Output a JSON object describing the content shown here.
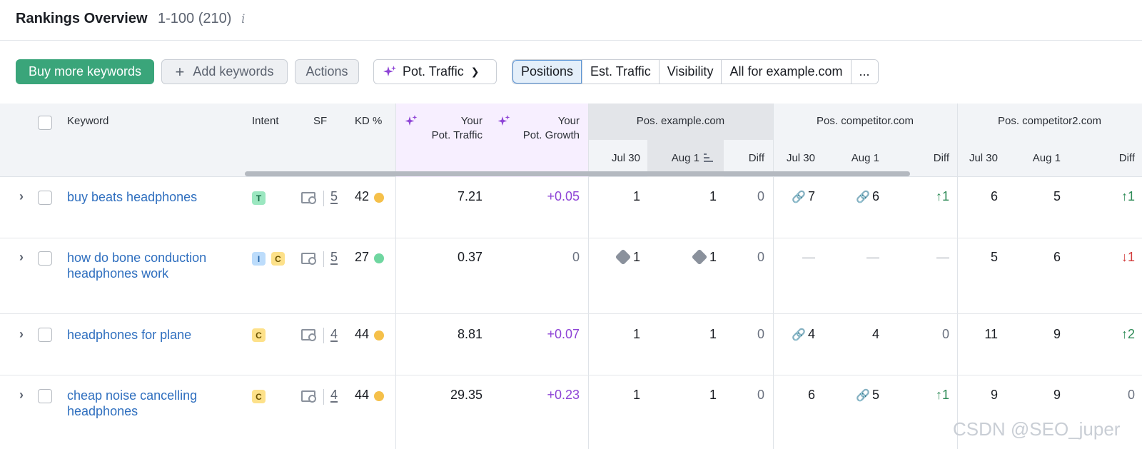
{
  "header": {
    "title": "Rankings Overview",
    "range": "1-100 (210)",
    "info_icon": "i"
  },
  "toolbar": {
    "buy_more": "Buy more keywords",
    "add_keywords": "Add keywords",
    "actions": "Actions",
    "pot_traffic": "Pot. Traffic",
    "tabs": [
      "Positions",
      "Est. Traffic",
      "Visibility",
      "All for example.com",
      "..."
    ],
    "active_tab": "Positions"
  },
  "columns": {
    "keyword": "Keyword",
    "intent": "Intent",
    "sf": "SF",
    "kd": "KD %",
    "your_pot_traffic_1": "Your",
    "your_pot_traffic_2": "Pot. Traffic",
    "your_pot_growth_1": "Your",
    "your_pot_growth_2": "Pot. Growth",
    "groups": [
      {
        "name": "Pos. example.com",
        "cols": [
          "Jul 30",
          "Aug 1",
          "Diff"
        ]
      },
      {
        "name": "Pos. competitor.com",
        "cols": [
          "Jul 30",
          "Aug 1",
          "Diff"
        ]
      },
      {
        "name": "Pos. competitor2.com",
        "cols": [
          "Jul 30",
          "Aug 1",
          "Diff"
        ]
      }
    ]
  },
  "rows": [
    {
      "keyword_line1": "buy beats headphones",
      "keyword_line2": "",
      "intents": [
        "T"
      ],
      "sf": "5",
      "kd": "42",
      "kd_color": "#f5c04a",
      "pot_traffic": "7.21",
      "pot_growth": "+0.05",
      "ex": [
        "1",
        "1",
        "0"
      ],
      "c1": [
        "7",
        "6",
        "↑1"
      ],
      "c2": [
        "6",
        "5",
        "↑1"
      ]
    },
    {
      "keyword_line1": "how do bone conduction",
      "keyword_line2": "headphones work",
      "intents": [
        "I",
        "C"
      ],
      "sf": "5",
      "kd": "27",
      "kd_color": "#6fd6a0",
      "pot_traffic": "0.37",
      "pot_growth": "0",
      "ex": [
        "1",
        "1",
        "0"
      ],
      "c1": [
        "—",
        "—",
        "—"
      ],
      "c2": [
        "5",
        "6",
        "↓1"
      ]
    },
    {
      "keyword_line1": "headphones for plane",
      "keyword_line2": "",
      "intents": [
        "C"
      ],
      "sf": "4",
      "kd": "44",
      "kd_color": "#f5c04a",
      "pot_traffic": "8.81",
      "pot_growth": "+0.07",
      "ex": [
        "1",
        "1",
        "0"
      ],
      "c1": [
        "4",
        "4",
        "0"
      ],
      "c2": [
        "11",
        "9",
        "↑2"
      ]
    },
    {
      "keyword_line1": "cheap noise cancelling",
      "keyword_line2": "headphones",
      "intents": [
        "C"
      ],
      "sf": "4",
      "kd": "44",
      "kd_color": "#f5c04a",
      "pot_traffic": "29.35",
      "pot_growth": "+0.23",
      "ex": [
        "1",
        "1",
        "0"
      ],
      "c1": [
        "6",
        "5",
        "↑1"
      ],
      "c2": [
        "9",
        "9",
        "0"
      ]
    }
  ],
  "watermark": "CSDN @SEO_juper"
}
